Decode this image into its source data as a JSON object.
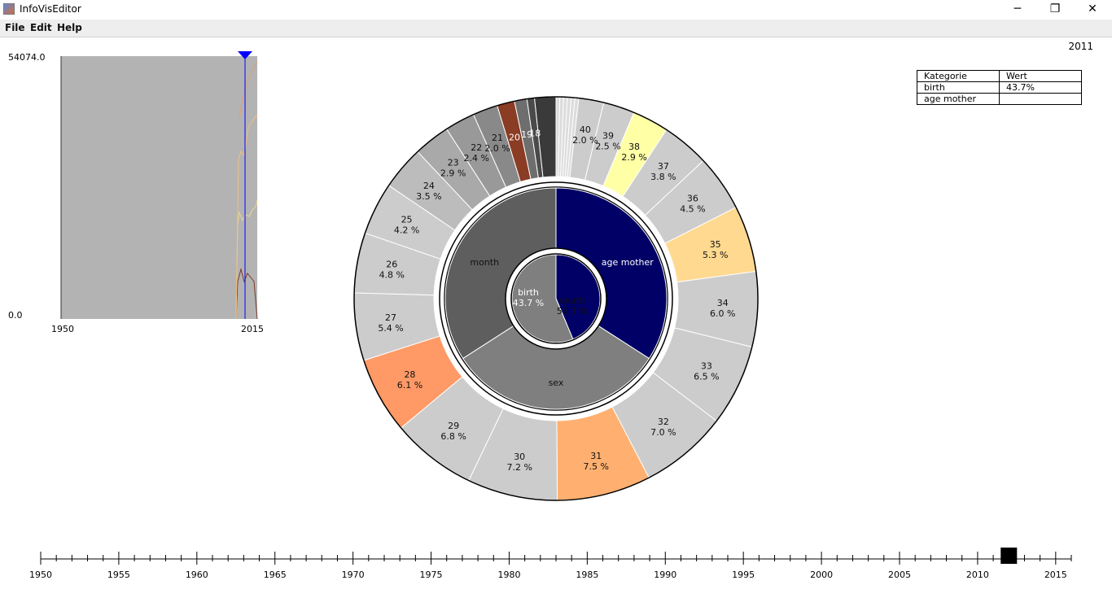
{
  "window": {
    "title": "InfoVisEditor",
    "minimize": "─",
    "maximize": "❐",
    "close": "✕"
  },
  "menu": [
    "File",
    "Edit",
    "Help"
  ],
  "year": "2011",
  "info_table": {
    "header": [
      "Kategorie",
      "Wert"
    ],
    "rows": [
      [
        "birth",
        "43.7%"
      ],
      [
        "age mother",
        ""
      ]
    ]
  },
  "mini_chart": {
    "ymax": "54074.0",
    "ymin": "0.0",
    "xstart": "1950",
    "xend": "2015"
  },
  "timeline": {
    "labels": [
      "1950",
      "1955",
      "1960",
      "1965",
      "1970",
      "1975",
      "1980",
      "1985",
      "1990",
      "1995",
      "2000",
      "2005",
      "2010",
      "2015"
    ],
    "selected": 2012
  },
  "chart_data": {
    "type": "sunburst",
    "inner": [
      {
        "label": "birth",
        "value": "43.7 %",
        "fraction": 0.437,
        "color": "#000066"
      },
      {
        "label": "death",
        "value": "56.3 %",
        "fraction": 0.563,
        "color": "#7f7f7f"
      }
    ],
    "middle": [
      {
        "label": "age mother",
        "fraction": 0.3333,
        "color": "#000066"
      },
      {
        "label": "sex",
        "fraction": 0.3333,
        "color": "#7f7f7f"
      },
      {
        "label": "month",
        "fraction": 0.3334,
        "color": "#5e5e5e"
      }
    ],
    "outer": [
      {
        "label": "40",
        "value": "2.0 %",
        "pct": 2.0,
        "color": "#cccccc"
      },
      {
        "label": "39",
        "value": "2.5 %",
        "pct": 2.5,
        "color": "#cccccc"
      },
      {
        "label": "38",
        "value": "2.9 %",
        "pct": 2.9,
        "color": "#ffffa6"
      },
      {
        "label": "37",
        "value": "3.8 %",
        "pct": 3.8,
        "color": "#cccccc"
      },
      {
        "label": "36",
        "value": "4.5 %",
        "pct": 4.5,
        "color": "#cccccc"
      },
      {
        "label": "35",
        "value": "5.3 %",
        "pct": 5.3,
        "color": "#ffd990"
      },
      {
        "label": "34",
        "value": "6.0 %",
        "pct": 6.0,
        "color": "#cccccc"
      },
      {
        "label": "33",
        "value": "6.5 %",
        "pct": 6.5,
        "color": "#cccccc"
      },
      {
        "label": "32",
        "value": "7.0 %",
        "pct": 7.0,
        "color": "#cccccc"
      },
      {
        "label": "31",
        "value": "7.5 %",
        "pct": 7.5,
        "color": "#ffb070"
      },
      {
        "label": "30",
        "value": "7.2 %",
        "pct": 7.2,
        "color": "#cccccc"
      },
      {
        "label": "29",
        "value": "6.8 %",
        "pct": 6.8,
        "color": "#cccccc"
      },
      {
        "label": "28",
        "value": "6.1 %",
        "pct": 6.1,
        "color": "#ff9966"
      },
      {
        "label": "27",
        "value": "5.4 %",
        "pct": 5.4,
        "color": "#cccccc"
      },
      {
        "label": "26",
        "value": "4.8 %",
        "pct": 4.8,
        "color": "#cccccc"
      },
      {
        "label": "25",
        "value": "4.2 %",
        "pct": 4.2,
        "color": "#cccccc"
      },
      {
        "label": "24",
        "value": "3.5 %",
        "pct": 3.5,
        "color": "#bcbcbc"
      },
      {
        "label": "23",
        "value": "2.9 %",
        "pct": 2.9,
        "color": "#a9a9a9"
      },
      {
        "label": "22",
        "value": "2.4 %",
        "pct": 2.4,
        "color": "#999999"
      },
      {
        "label": "21",
        "value": "2.0 %",
        "pct": 2.0,
        "color": "#898989"
      },
      {
        "label": "20",
        "value": "",
        "pct": 1.4,
        "color": "#8a3c24"
      },
      {
        "label": "19",
        "value": "",
        "pct": 1.0,
        "color": "#6e6e6e"
      },
      {
        "label": "18",
        "value": "",
        "pct": 0.6,
        "color": "#4a4a4a"
      }
    ]
  }
}
